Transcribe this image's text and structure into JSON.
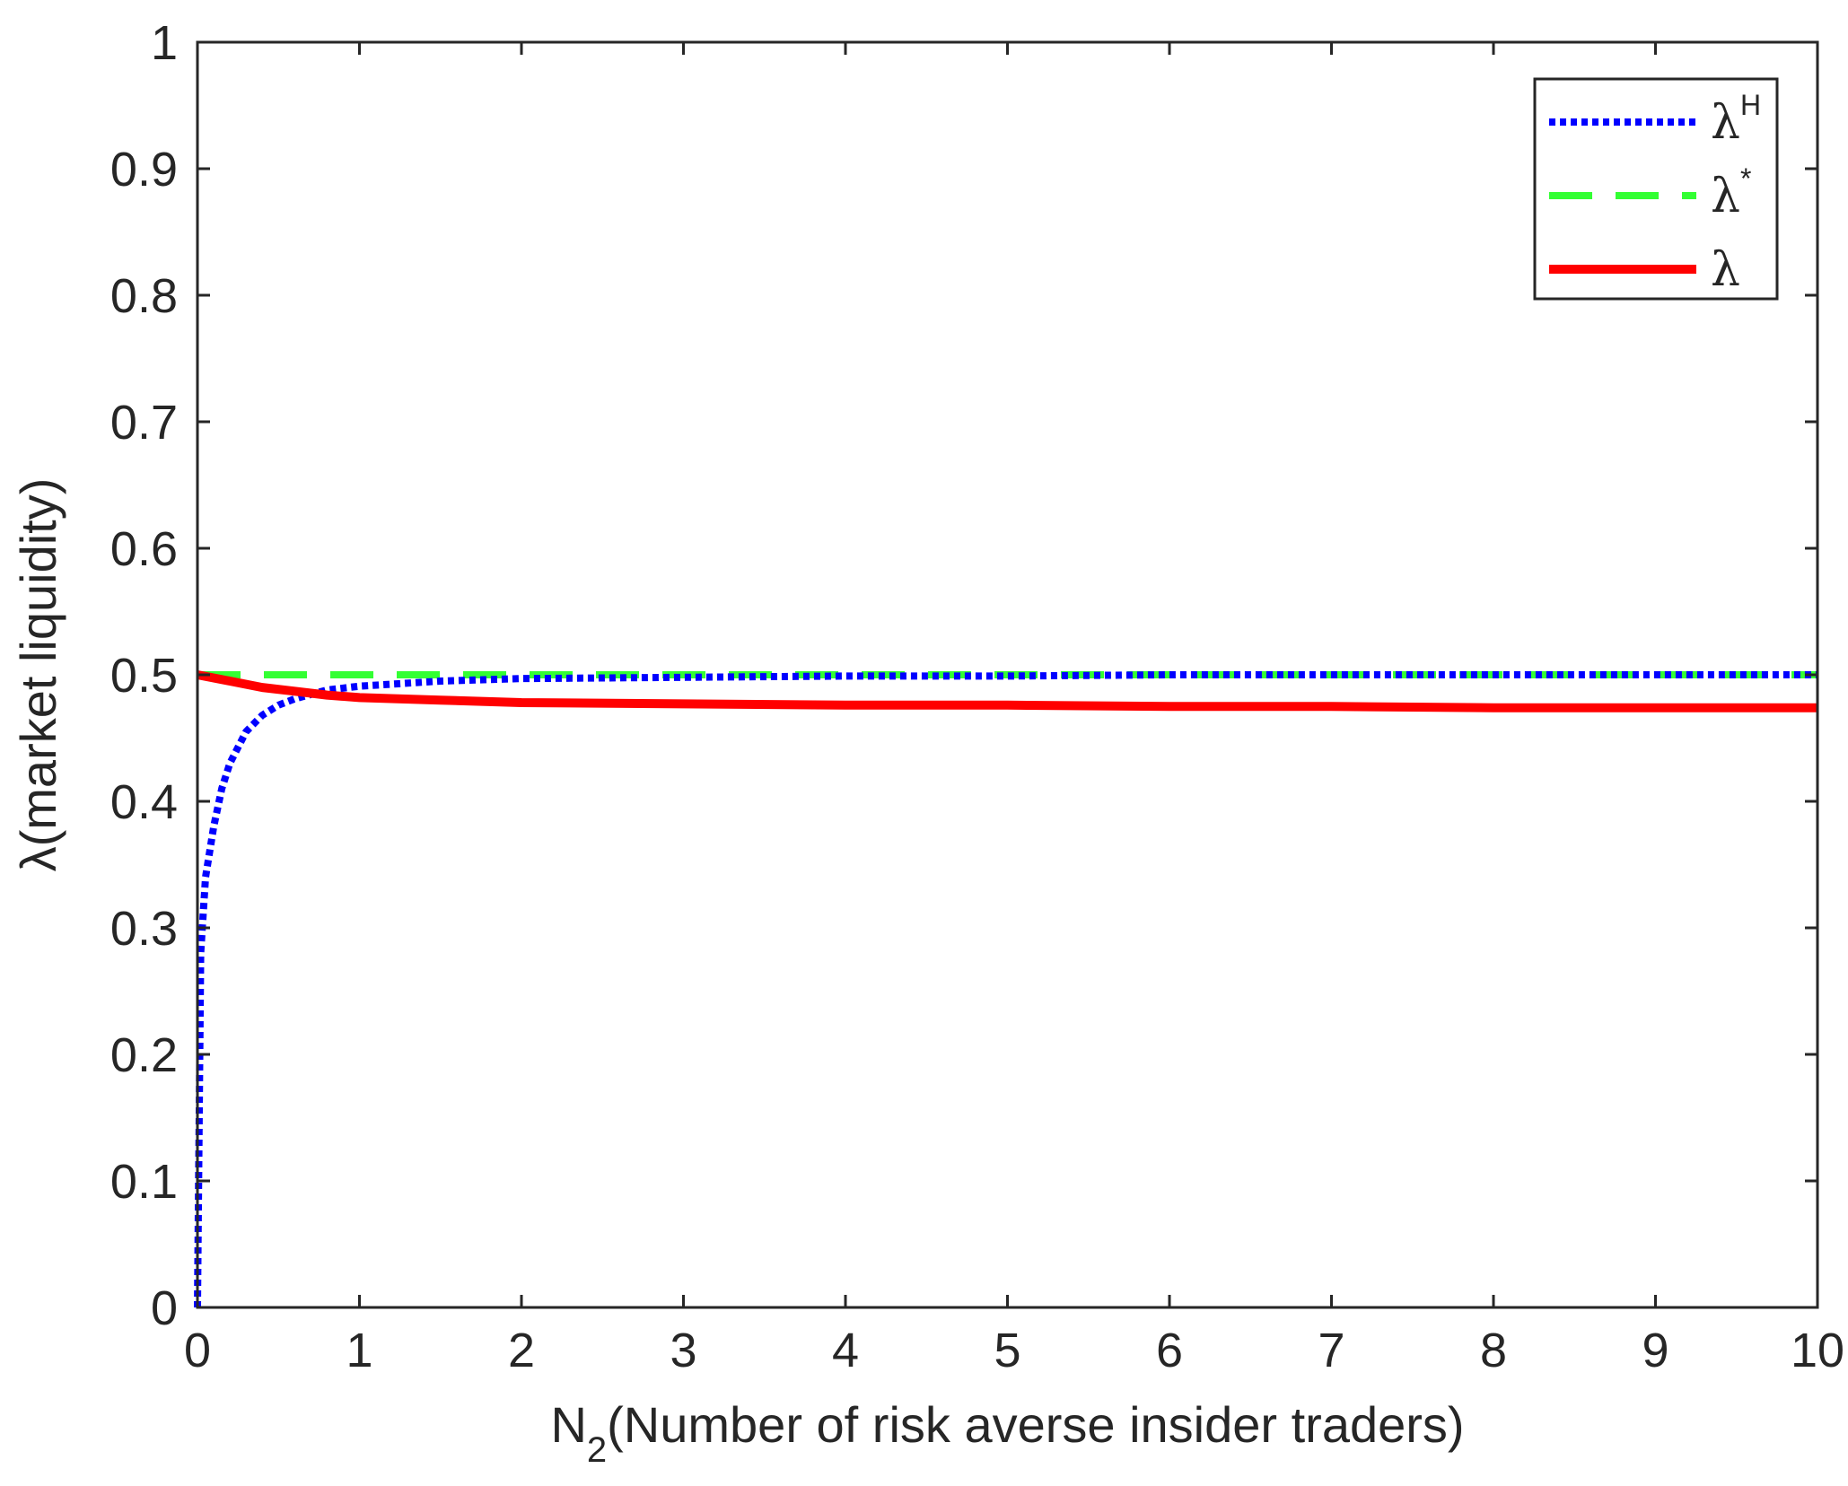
{
  "chart_data": {
    "type": "line",
    "xlabel": {
      "text": "N",
      "sub": "2",
      "rest": "(Number of risk averse insider traders)"
    },
    "ylabel": "λ(market liquidity)",
    "xlim": [
      0,
      10
    ],
    "ylim": [
      0,
      1
    ],
    "xticks": [
      0,
      1,
      2,
      3,
      4,
      5,
      6,
      7,
      8,
      9,
      10
    ],
    "yticks": [
      0,
      0.1,
      0.2,
      0.3,
      0.4,
      0.5,
      0.6,
      0.7,
      0.8,
      0.9,
      1
    ],
    "xtick_labels": [
      "0",
      "1",
      "2",
      "3",
      "4",
      "5",
      "6",
      "7",
      "8",
      "9",
      "10"
    ],
    "ytick_labels": [
      "0",
      "0.1",
      "0.2",
      "0.3",
      "0.4",
      "0.5",
      "0.6",
      "0.7",
      "0.8",
      "0.9",
      "1"
    ],
    "grid": false,
    "legend_position": "top-right",
    "series": [
      {
        "name": "λ",
        "superscript": "H",
        "color": "#0000ff",
        "style": "dotted",
        "x": [
          0,
          0.02,
          0.05,
          0.1,
          0.15,
          0.2,
          0.3,
          0.4,
          0.5,
          0.6,
          0.8,
          1,
          1.5,
          2,
          3,
          4,
          5,
          6,
          7,
          8,
          9,
          10
        ],
        "y": [
          0,
          0.28,
          0.34,
          0.38,
          0.41,
          0.43,
          0.455,
          0.468,
          0.476,
          0.481,
          0.488,
          0.491,
          0.495,
          0.497,
          0.498,
          0.499,
          0.499,
          0.5,
          0.5,
          0.5,
          0.5,
          0.5
        ]
      },
      {
        "name": "λ",
        "superscript": "*",
        "color": "#33ff33",
        "style": "dashed",
        "x": [
          0,
          10
        ],
        "y": [
          0.5,
          0.5
        ]
      },
      {
        "name": "λ",
        "superscript": "",
        "color": "#ff0000",
        "style": "solid",
        "x": [
          0,
          0.2,
          0.4,
          0.6,
          0.8,
          1,
          1.5,
          2,
          3,
          4,
          5,
          6,
          7,
          8,
          9,
          10
        ],
        "y": [
          0.5,
          0.495,
          0.49,
          0.487,
          0.484,
          0.482,
          0.48,
          0.478,
          0.477,
          0.476,
          0.476,
          0.475,
          0.475,
          0.474,
          0.474,
          0.474
        ]
      }
    ]
  }
}
